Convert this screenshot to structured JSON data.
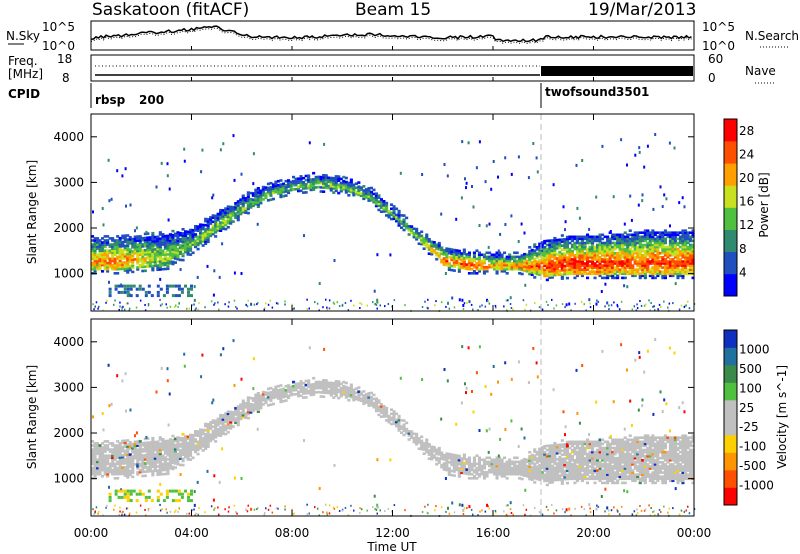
{
  "header": {
    "station": "Saskatoon (fitACF)",
    "beam": "Beam 15",
    "date": "19/Mar/2013"
  },
  "noise_panel": {
    "left_label": "N.Sky",
    "right_label": "N.Search",
    "left_ticks": [
      "10^5",
      "10^0"
    ],
    "right_ticks": [
      "10^5",
      "10^0"
    ]
  },
  "freq_panel": {
    "label_line1": "Freq.",
    "label_line2": "[MHz]",
    "left_ticks": [
      "18",
      "8"
    ],
    "right_ticks": [
      "60",
      "0"
    ],
    "right_label": "Nave"
  },
  "cpid_panel": {
    "label": "CPID",
    "programs": [
      {
        "name": "rbsp",
        "id": "200",
        "start_hour": 0
      },
      {
        "name": "twofsound",
        "id": "3501",
        "start_hour": 18
      }
    ]
  },
  "axes": {
    "ylabel": "Slant Range [km]",
    "y_ticks": [
      "4000",
      "3000",
      "2000",
      "1000"
    ],
    "xlabel": "Time UT",
    "x_ticks": [
      "00:00",
      "04:00",
      "08:00",
      "12:00",
      "16:00",
      "20:00",
      "00:00"
    ]
  },
  "colors": {
    "power": [
      "#0000ff",
      "#2050c0",
      "#2f8a6f",
      "#50c040",
      "#c8e020",
      "#ffa000",
      "#ff5000",
      "#ff0000"
    ],
    "velocity": [
      "#ff0000",
      "#ff5000",
      "#ff9500",
      "#ffd000",
      "#c0c0c0",
      "#c0c0c0",
      "#50c040",
      "#3a8a4a",
      "#2070a0",
      "#1030c0"
    ],
    "ground_scatter": "#c0c0c0"
  },
  "chart_data": [
    {
      "type": "heatmap",
      "title": "Power",
      "xlabel": "Time UT",
      "ylabel": "Slant Range [km]",
      "xlim": [
        0,
        24
      ],
      "ylim": [
        180,
        4500
      ],
      "colorbar": {
        "label": "Power [dB]",
        "ticks": [
          "28",
          "24",
          "20",
          "16",
          "12",
          "8",
          "4"
        ],
        "range": [
          0,
          30
        ]
      },
      "scatter_band": {
        "x": [
          0,
          1,
          2,
          3,
          3.5,
          4,
          5,
          6,
          7,
          8,
          9,
          10,
          11,
          12,
          13,
          14,
          15,
          16,
          17,
          18,
          19,
          20,
          21,
          22,
          23,
          24
        ],
        "upper": [
          1750,
          1750,
          1800,
          1850,
          1900,
          1950,
          2300,
          2650,
          2900,
          3050,
          3150,
          3050,
          2850,
          2400,
          1900,
          1550,
          1450,
          1400,
          1380,
          1700,
          1800,
          1800,
          1850,
          1900,
          1900,
          1900
        ],
        "lower": [
          1050,
          1050,
          1100,
          1150,
          1300,
          1500,
          1900,
          2300,
          2650,
          2800,
          2850,
          2800,
          2600,
          2200,
          1700,
          1150,
          1050,
          1050,
          1050,
          900,
          950,
          950,
          950,
          950,
          950,
          950
        ],
        "peak_power": [
          22,
          24,
          20,
          16,
          14,
          14,
          16,
          14,
          14,
          14,
          14,
          14,
          14,
          14,
          18,
          24,
          26,
          22,
          22,
          26,
          28,
          28,
          26,
          26,
          26,
          26
        ]
      }
    },
    {
      "type": "heatmap",
      "title": "Velocity",
      "xlabel": "Time UT",
      "ylabel": "Slant Range [km]",
      "xlim": [
        0,
        24
      ],
      "ylim": [
        180,
        4500
      ],
      "colorbar": {
        "label": "Velocity [m s^-1]",
        "ticks": [
          "1000",
          "500",
          "100",
          "25",
          "-25",
          "-100",
          "-500",
          "-1000"
        ]
      },
      "note_ground_scatter_band_same_as_power_panel": true
    }
  ]
}
